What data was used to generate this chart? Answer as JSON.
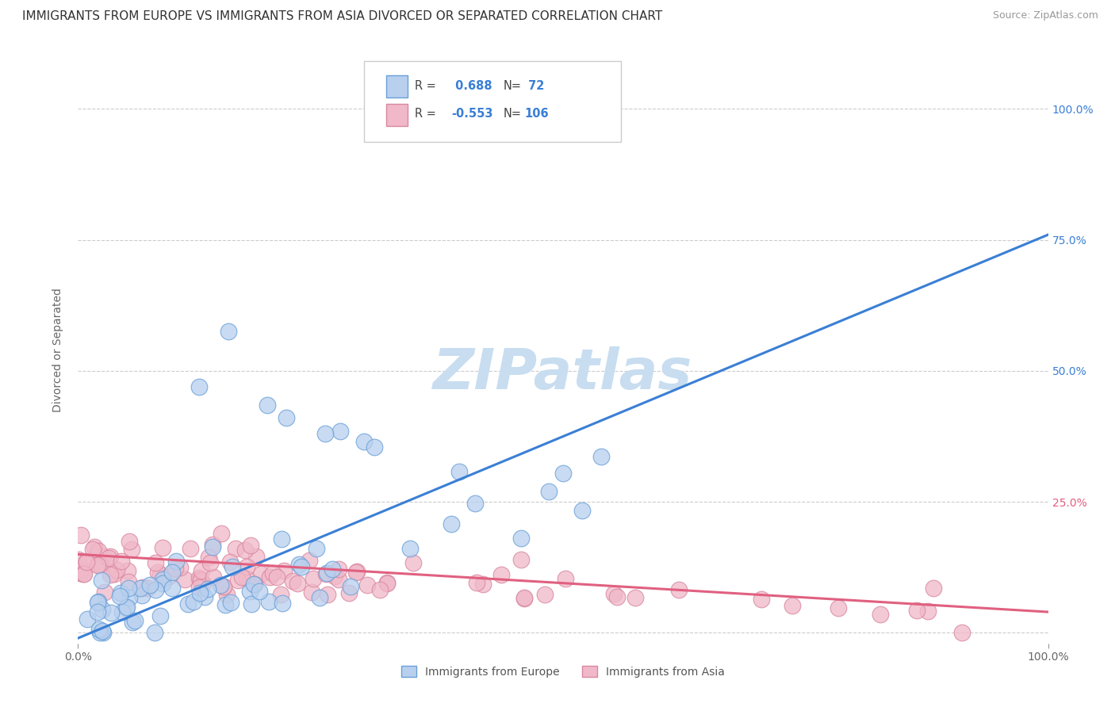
{
  "title": "IMMIGRANTS FROM EUROPE VS IMMIGRANTS FROM ASIA DIVORCED OR SEPARATED CORRELATION CHART",
  "source": "Source: ZipAtlas.com",
  "ylabel": "Divorced or Separated",
  "series": [
    {
      "label": "Immigrants from Europe",
      "R": 0.688,
      "N": 72,
      "line_color": "#3a7fd5",
      "marker_face": "#b8d0ee",
      "marker_edge": "#6aa0d8"
    },
    {
      "label": "Immigrants from Asia",
      "R": -0.553,
      "N": 106,
      "line_color": "#e06080",
      "marker_face": "#f0b8c8",
      "marker_edge": "#d888a0"
    }
  ],
  "xlim": [
    0.0,
    1.0
  ],
  "ylim": [
    -0.02,
    1.1
  ],
  "yticks": [
    0.0,
    0.25,
    0.5,
    0.75,
    1.0
  ],
  "xticks": [
    0.0,
    1.0
  ],
  "xtick_labels": [
    "0.0%",
    "100.0%"
  ],
  "background_color": "#ffffff",
  "grid_color": "#cccccc",
  "watermark": "ZIPatlas",
  "watermark_color": "#c8ddf0",
  "blue_line": {
    "x0": 0.0,
    "y0": -0.01,
    "x1": 1.0,
    "y1": 0.76
  },
  "pink_line": {
    "x0": 0.0,
    "y0": 0.15,
    "x1": 1.0,
    "y1": 0.04
  },
  "title_fontsize": 11,
  "source_fontsize": 9,
  "axis_label_fontsize": 10,
  "tick_fontsize": 10,
  "right_tick_colors": [
    "#ffffff",
    "#e06080",
    "#3a7fd5",
    "#3a7fd5",
    "#3a7fd5"
  ],
  "right_tick_labels": [
    "",
    "25.0%",
    "50.0%",
    "75.0%",
    "100.0%"
  ]
}
